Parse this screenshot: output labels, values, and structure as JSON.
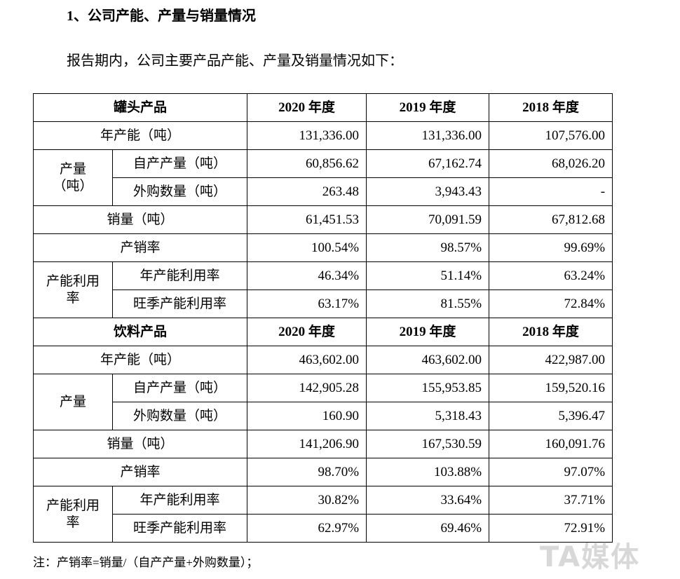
{
  "header": {
    "title": "1、公司产能、产量与销量情况",
    "intro": "报告期内，公司主要产品产能、产量及销量情况如下："
  },
  "sections": [
    {
      "title_row": [
        "罐头产品",
        "2020 年度",
        "2019 年度",
        "2018 年度"
      ],
      "rows": [
        {
          "label": "年产能（吨）",
          "values": [
            "131,336.00",
            "131,336.00",
            "107,576.00"
          ]
        },
        {
          "group": [
            "产量",
            "（吨）"
          ],
          "items": [
            {
              "label": "自产产量（吨）",
              "values": [
                "60,856.62",
                "67,162.74",
                "68,026.20"
              ]
            },
            {
              "label": "外购数量（吨）",
              "values": [
                "263.48",
                "3,943.43",
                "-"
              ]
            }
          ]
        },
        {
          "label": "销量（吨）",
          "values": [
            "61,451.53",
            "70,091.59",
            "67,812.68"
          ]
        },
        {
          "label": "产销率",
          "values": [
            "100.54%",
            "98.57%",
            "99.69%"
          ]
        },
        {
          "group": [
            "产能利用",
            "率"
          ],
          "items": [
            {
              "label": "年产能利用率",
              "values": [
                "46.34%",
                "51.14%",
                "63.24%"
              ]
            },
            {
              "label": "旺季产能利用率",
              "values": [
                "63.17%",
                "81.55%",
                "72.84%"
              ]
            }
          ]
        }
      ]
    },
    {
      "title_row": [
        "饮料产品",
        "2020 年度",
        "2019 年度",
        "2018 年度"
      ],
      "rows": [
        {
          "label": "年产能（吨）",
          "values": [
            "463,602.00",
            "463,602.00",
            "422,987.00"
          ]
        },
        {
          "group": [
            "产量"
          ],
          "items": [
            {
              "label": "自产产量（吨）",
              "values": [
                "142,905.28",
                "155,953.85",
                "159,520.16"
              ]
            },
            {
              "label": "外购数量（吨）",
              "values": [
                "160.90",
                "5,318.43",
                "5,396.47"
              ]
            }
          ]
        },
        {
          "label": "销量（吨）",
          "values": [
            "141,206.90",
            "167,530.59",
            "160,091.76"
          ]
        },
        {
          "label": "产销率",
          "values": [
            "98.70%",
            "103.88%",
            "97.07%"
          ]
        },
        {
          "group": [
            "产能利用",
            "率"
          ],
          "items": [
            {
              "label": "年产能利用率",
              "values": [
                "30.82%",
                "33.64%",
                "37.71%"
              ]
            },
            {
              "label": "旺季产能利用率",
              "values": [
                "62.97%",
                "69.46%",
                "72.91%"
              ]
            }
          ]
        }
      ]
    }
  ],
  "note": "注：产销率=销量/（自产产量+外购数量）；",
  "watermark": "TA媒体"
}
